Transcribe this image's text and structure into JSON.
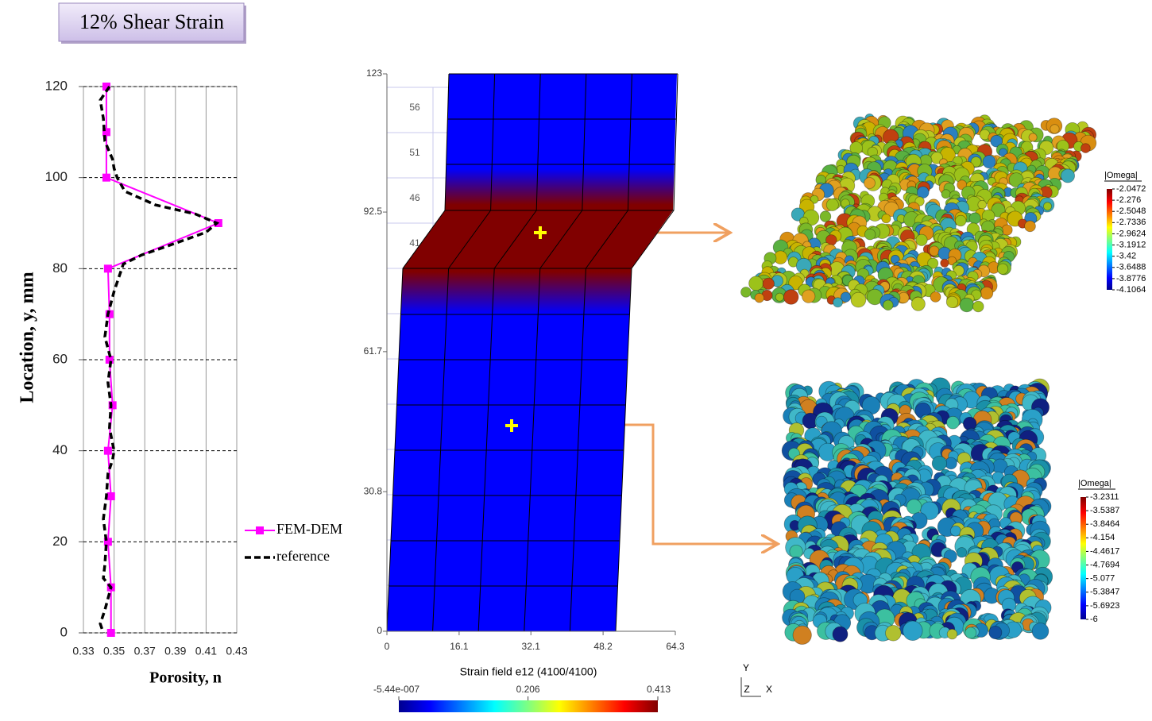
{
  "header": {
    "title": "12% Shear Strain"
  },
  "chart_data": [
    {
      "type": "line",
      "xlabel": "Porosity, n",
      "ylabel": "Location, y, mm",
      "xlim": [
        0.33,
        0.43
      ],
      "xticks": [
        0.33,
        0.35,
        0.37,
        0.39,
        0.41,
        0.43
      ],
      "ylim": [
        0,
        120
      ],
      "yticks": [
        0,
        20,
        40,
        60,
        80,
        100,
        120
      ],
      "grid": true,
      "series": [
        {
          "name": "FEM-DEM",
          "color": "#ff00ff",
          "marker": "square",
          "y": [
            120,
            110,
            100,
            90,
            80,
            70,
            60,
            50,
            40,
            30,
            20,
            10,
            0
          ],
          "x": [
            0.345,
            0.345,
            0.345,
            0.418,
            0.346,
            0.347,
            0.347,
            0.349,
            0.346,
            0.348,
            0.346,
            0.348,
            0.348
          ]
        },
        {
          "name": "reference",
          "color": "#000000",
          "dash": true,
          "y": [
            120,
            117,
            113,
            108,
            104,
            102,
            100,
            97,
            94,
            92,
            90,
            88,
            85,
            83,
            81,
            78,
            75,
            70,
            65,
            60,
            55,
            50,
            45,
            40,
            38,
            35,
            30,
            25,
            20,
            15,
            12,
            10,
            5,
            2,
            0
          ],
          "x": [
            0.347,
            0.341,
            0.343,
            0.344,
            0.349,
            0.35,
            0.352,
            0.357,
            0.377,
            0.403,
            0.417,
            0.41,
            0.385,
            0.368,
            0.356,
            0.353,
            0.35,
            0.346,
            0.344,
            0.348,
            0.346,
            0.348,
            0.347,
            0.35,
            0.349,
            0.346,
            0.345,
            0.343,
            0.345,
            0.344,
            0.343,
            0.348,
            0.344,
            0.341,
            0.343
          ]
        }
      ]
    },
    {
      "type": "field",
      "title": "Strain field e12 (4100/4100)",
      "xlim": [
        0,
        64.3
      ],
      "xticks": [
        0,
        16.1,
        32.1,
        48.2,
        64.3
      ],
      "ylim": [
        0,
        123
      ],
      "yticks": [
        0,
        30.8,
        61.7,
        92.5,
        123
      ],
      "clim": [
        -5.44e-07,
        0.413
      ],
      "colorbar_ticks": [
        {
          "value": -5.44e-07,
          "label": "-5.44e-007"
        },
        0.206,
        0.413
      ],
      "cell_labels": [
        "56",
        "51",
        "46",
        "41"
      ],
      "triad_labels": [
        "Y",
        "Z",
        "X"
      ]
    },
    {
      "type": "particles",
      "title": "|Omega|",
      "colorbar_ticks": [
        -2.0472,
        -2.276,
        -2.5048,
        -2.7336,
        -2.9624,
        -3.1912,
        -3.42,
        -3.6488,
        -3.8776,
        -4.1064
      ]
    },
    {
      "type": "particles",
      "title": "|Omega|",
      "colorbar_ticks": [
        -3.2311,
        -3.5387,
        -3.8464,
        -4.154,
        -4.4617,
        -4.7694,
        -5.077,
        -5.3847,
        -5.6923,
        -6
      ]
    }
  ]
}
